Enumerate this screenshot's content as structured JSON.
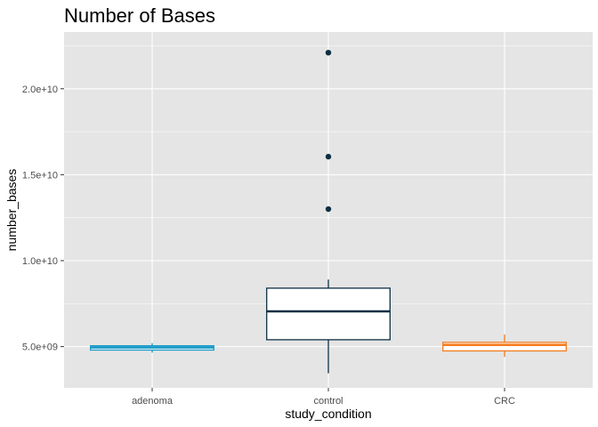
{
  "chart_data": {
    "type": "box",
    "title": "Number of Bases",
    "xlabel": "study_condition",
    "ylabel": "number_bases",
    "categories": [
      "adenoma",
      "control",
      "CRC"
    ],
    "yticks": [
      5000000000,
      10000000000,
      15000000000,
      20000000000
    ],
    "ytick_labels": [
      "5.0e+09",
      "1.0e+10",
      "1.5e+10",
      "2.0e+10"
    ],
    "ylim": [
      2600000000,
      23300000000
    ],
    "grid": true,
    "legend": "none",
    "boxes": [
      {
        "category": "adenoma",
        "color": "#1a9bc8",
        "q1": 4800000000,
        "median": 4950000000,
        "q3": 5050000000,
        "whisker_low": 4650000000,
        "whisker_high": 5200000000,
        "outliers": []
      },
      {
        "category": "control",
        "color": "#0e2f44",
        "q1": 5400000000,
        "median": 7050000000,
        "q3": 8400000000,
        "whisker_low": 3450000000,
        "whisker_high": 8900000000,
        "outliers": [
          13000000000,
          16050000000,
          22100000000
        ]
      },
      {
        "category": "CRC",
        "color": "#f57c1f",
        "q1": 4750000000,
        "median": 5100000000,
        "q3": 5250000000,
        "whisker_low": 4400000000,
        "whisker_high": 5700000000,
        "outliers": []
      }
    ]
  },
  "colors": {
    "panel_background": "#e5e5e5",
    "grid_line": "#ffffff",
    "box_fill": "#ffffff"
  }
}
